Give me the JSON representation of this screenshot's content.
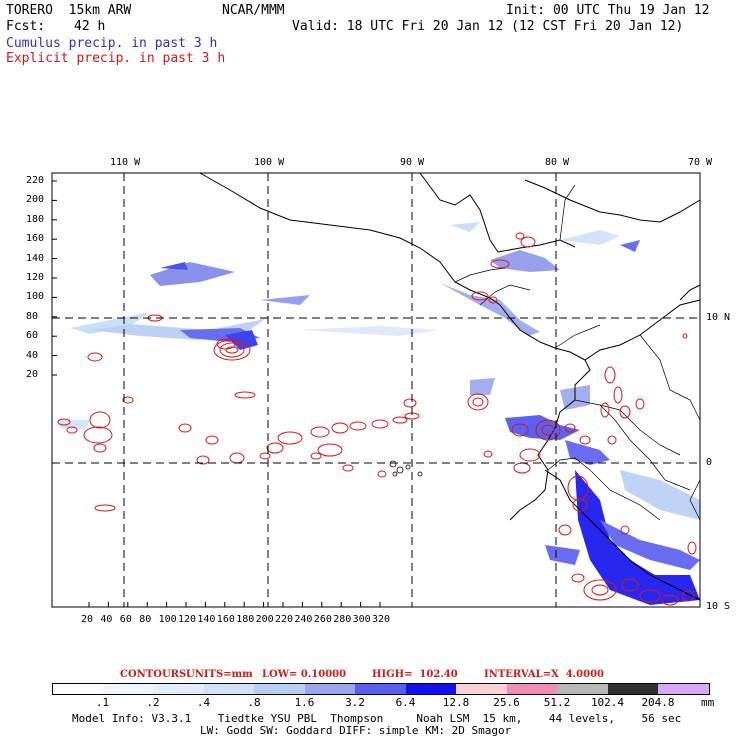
{
  "header": {
    "model": "TORERO  15km ARW",
    "center": "NCAR/MMM",
    "init": "Init: 00 UTC Thu 19 Jan 12",
    "fcst_label": "Fcst:",
    "fcst_value": "42 h",
    "valid": "Valid: 18 UTC Fri 20 Jan 12 (12 CST Fri 20 Jan 12)",
    "line_cumulus": "Cumulus precip. in past 3 h",
    "line_explicit": "Explicit precip. in past 3 h"
  },
  "map": {
    "lon_labels": [
      "110 W",
      "100 W",
      "90 W",
      "80 W",
      "70 W"
    ],
    "lat_labels": [
      "10 N",
      "0",
      "10 S"
    ],
    "y_ticks": [
      "220",
      "200",
      "180",
      "160",
      "140",
      "120",
      "100",
      "80",
      "60",
      "40",
      "20"
    ],
    "x_ticks": [
      "20",
      "40",
      "60",
      "80",
      "100",
      "120",
      "140",
      "160",
      "180",
      "200",
      "220",
      "240",
      "260",
      "280",
      "300",
      "320"
    ]
  },
  "contours_info": {
    "label": "CONTOURS:",
    "units": "UNITS=mm",
    "low": "LOW= 0.10000",
    "high": "HIGH=  102.40",
    "interval": "INTERVAL=X  4.0000"
  },
  "colorbar": {
    "labels": [
      ".1",
      ".2",
      ".4",
      ".8",
      "1.6",
      "3.2",
      "6.4",
      "12.8",
      "25.6",
      "51.2",
      "102.4",
      "204.8"
    ],
    "unit": "mm",
    "colors": [
      "#ffffff",
      "#f0f6ff",
      "#e2eefc",
      "#cfe2fa",
      "#b8cff5",
      "#9aa6ee",
      "#5a5ef0",
      "#1010f0",
      "#fcd2d2",
      "#f08cb8",
      "#b8b8b8",
      "#303030",
      "#d8a8f8"
    ]
  },
  "footer": {
    "line1": "Model Info: V3.3.1    Tiedtke YSU PBL  Thompson     Noah LSM  15 km,    44 levels,    56 sec",
    "line2": "LW: Godd SW: Goddard DIFF: simple KM: 2D Smagor"
  }
}
